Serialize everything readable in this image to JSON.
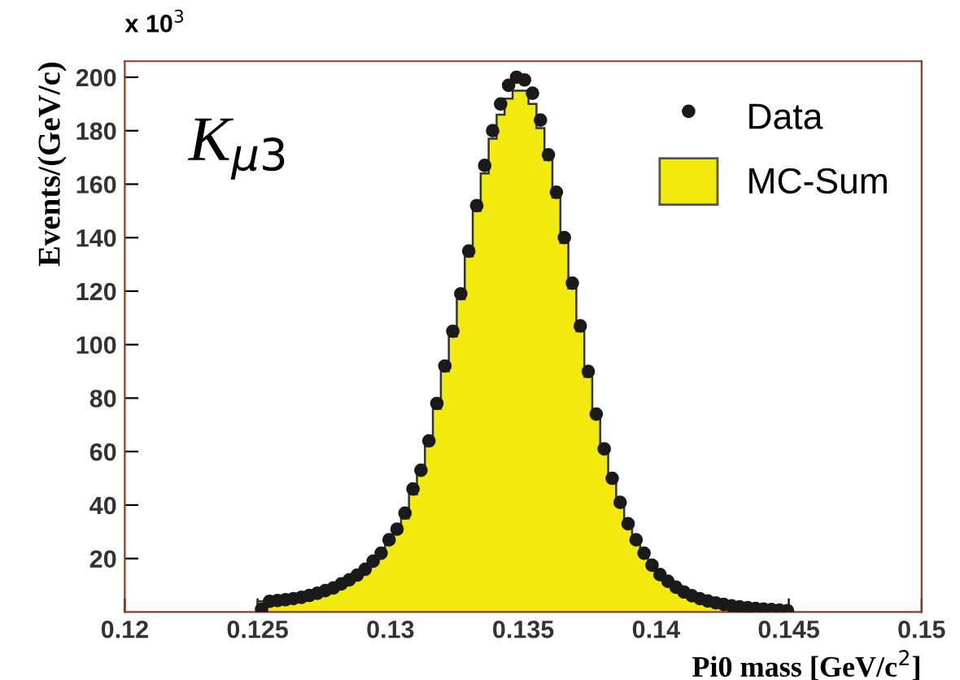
{
  "chart_data": {
    "type": "histogram",
    "xlabel": "Pi0 mass [GeV/c$^{2}$]",
    "ylabel": "Events/(GeV/c)",
    "annotations": [
      "x 10$^{3}$",
      "K$_{μ3}$"
    ],
    "bins": [
      0.125,
      0.1253,
      0.1256,
      0.1259,
      0.1262,
      0.1265,
      0.1268,
      0.1271,
      0.1274,
      0.1277,
      0.128,
      0.1283,
      0.1286,
      0.1289,
      0.1292,
      0.1295,
      0.1298,
      0.1301,
      0.1304,
      0.1307,
      0.131,
      0.1313,
      0.1316,
      0.1319,
      0.1322,
      0.1325,
      0.1328,
      0.1331,
      0.1334,
      0.1337,
      0.134,
      0.1343,
      0.1346,
      0.1349,
      0.1352,
      0.1355,
      0.1358,
      0.1361,
      0.1364,
      0.1367,
      0.137,
      0.1373,
      0.1376,
      0.1379,
      0.1382,
      0.1385,
      0.1388,
      0.1391,
      0.1394,
      0.1397,
      0.14,
      0.1403,
      0.1406,
      0.1409,
      0.1412,
      0.1415,
      0.1418,
      0.1421,
      0.1424,
      0.1427,
      0.143,
      0.1433,
      0.1436,
      0.1439,
      0.1442,
      0.1445,
      0.1448,
      0.1451
    ],
    "series": [
      {
        "name": "MC-Sum",
        "color": "#f2ea0f",
        "values": [
          4,
          4,
          4.3,
          4.6,
          5,
          5.5,
          6.2,
          7,
          8,
          9,
          10.5,
          12,
          13.8,
          16,
          19,
          22,
          26,
          30,
          35,
          44,
          52,
          63,
          76,
          90,
          103,
          117,
          133,
          150,
          164,
          177,
          186,
          192,
          195,
          195,
          190,
          181,
          169,
          155,
          138,
          121,
          105,
          88,
          73,
          60,
          49,
          40,
          33,
          27,
          22,
          17.5,
          14,
          11.5,
          9.3,
          7.5,
          6.1,
          5,
          4.1,
          3.4,
          2.8,
          2.3,
          1.9,
          1.6,
          1.3,
          1.1,
          0.9,
          0.7,
          0.5
        ]
      },
      {
        "name": "Data",
        "type": "scatter",
        "color": "#1a1a1a",
        "marker": "circle",
        "x": [
          0.12515,
          0.12545,
          0.12575,
          0.12605,
          0.12635,
          0.12665,
          0.12695,
          0.12725,
          0.12755,
          0.12785,
          0.12815,
          0.12845,
          0.12875,
          0.12905,
          0.12935,
          0.12965,
          0.12995,
          0.13025,
          0.13055,
          0.13085,
          0.13115,
          0.13145,
          0.13175,
          0.13205,
          0.13235,
          0.13265,
          0.13295,
          0.13325,
          0.13355,
          0.13385,
          0.13415,
          0.13445,
          0.13475,
          0.13505,
          0.13535,
          0.13565,
          0.13595,
          0.13625,
          0.13655,
          0.13685,
          0.13715,
          0.13745,
          0.13775,
          0.13805,
          0.13835,
          0.13865,
          0.13895,
          0.13925,
          0.13955,
          0.13985,
          0.14015,
          0.14045,
          0.14075,
          0.14105,
          0.14135,
          0.14165,
          0.14195,
          0.14225,
          0.14255,
          0.14285,
          0.14315,
          0.14345,
          0.14375,
          0.14405,
          0.14435,
          0.14465,
          0.14495
        ],
        "values": [
          1,
          4,
          4.3,
          4.6,
          5,
          5.5,
          6.2,
          7,
          8,
          9,
          10.5,
          12,
          13.8,
          16,
          19,
          22,
          27,
          31,
          37,
          46,
          53,
          64,
          78,
          92,
          105,
          119,
          135,
          152,
          167,
          180,
          190,
          197,
          200,
          199,
          194,
          184,
          171,
          157,
          140,
          123,
          107,
          90,
          74,
          61,
          50,
          41,
          33,
          27,
          22,
          17.5,
          14,
          11.5,
          9.3,
          7.5,
          6.1,
          5,
          4.1,
          3.4,
          2.8,
          2.3,
          1.9,
          1.6,
          1.3,
          1.1,
          0.9,
          0.7,
          0.5
        ]
      }
    ],
    "xlim": [
      0.12,
      0.15
    ],
    "xticks": [
      0.12,
      0.125,
      0.13,
      0.135,
      0.14,
      0.145,
      0.15
    ],
    "ylim": [
      0,
      206
    ],
    "yticks": [
      20,
      40,
      60,
      80,
      100,
      120,
      140,
      160,
      180,
      200
    ],
    "legend": "top right",
    "grid": false
  }
}
